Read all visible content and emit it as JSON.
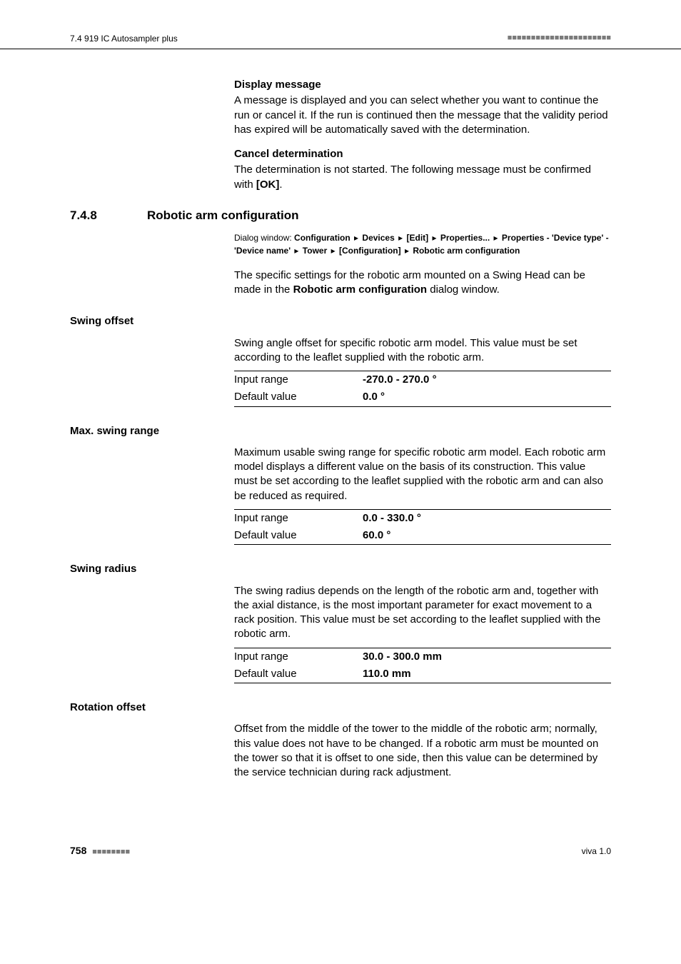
{
  "header": {
    "left": "7.4 919 IC Autosampler plus",
    "right_bars": "■■■■■■■■■■■■■■■■■■■■■■"
  },
  "topItems": [
    {
      "title": "Display message",
      "body": "A message is displayed and you can select whether you want to continue the run or cancel it. If the run is continued then the message that the validity period has expired will be automatically saved with the determination."
    },
    {
      "title": "Cancel determination",
      "bodyPrefix": "The determination is not started. The following message must be confirmed with ",
      "bodyBold": "[OK]",
      "bodySuffix": "."
    }
  ],
  "section": {
    "num": "7.4.8",
    "title": "Robotic arm configuration",
    "dialogLabel": "Dialog window: ",
    "path": {
      "p0": "Configuration",
      "p1": "Devices",
      "p2": "[Edit]",
      "p3": "Properties...",
      "p4": "Properties - 'Device type' - 'Device name'",
      "p5": "Tower",
      "p6": "[Configuration]",
      "p7": "Robotic arm configuration"
    },
    "introPrefix": "The specific settings for the robotic arm mounted on a Swing Head can be made in the ",
    "introBold": "Robotic arm configuration",
    "introSuffix": " dialog window."
  },
  "fields": [
    {
      "label": "Swing offset",
      "desc": "Swing angle offset for specific robotic arm model. This value must be set according to the leaflet supplied with the robotic arm.",
      "rangeLabel": "Input range",
      "rangeVal": "-270.0 - 270.0 °",
      "defaultLabel": "Default value",
      "defaultVal": "0.0 °"
    },
    {
      "label": "Max. swing range",
      "desc": "Maximum usable swing range for specific robotic arm model. Each robotic arm model displays a different value on the basis of its construction. This value must be set according to the leaflet supplied with the robotic arm and can also be reduced as required.",
      "rangeLabel": "Input range",
      "rangeVal": "0.0 - 330.0 °",
      "defaultLabel": "Default value",
      "defaultVal": "60.0 °"
    },
    {
      "label": "Swing radius",
      "desc": "The swing radius depends on the length of the robotic arm and, together with the axial distance, is the most important parameter for exact movement to a rack position. This value must be set according to the leaflet supplied with the robotic arm.",
      "rangeLabel": "Input range",
      "rangeVal": "30.0 - 300.0 mm",
      "defaultLabel": "Default value",
      "defaultVal": "110.0 mm"
    },
    {
      "label": "Rotation offset",
      "desc": "Offset from the middle of the tower to the middle of the robotic arm; normally, this value does not have to be changed. If a robotic arm must be mounted on the tower so that it is offset to one side, then this value can be determined by the service technician during rack adjustment."
    }
  ],
  "footer": {
    "page": "758",
    "bars": "■■■■■■■■",
    "right": "viva 1.0"
  }
}
